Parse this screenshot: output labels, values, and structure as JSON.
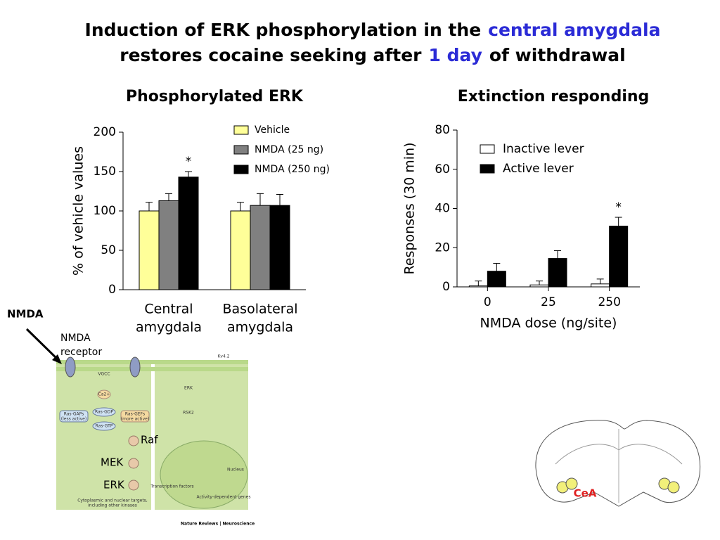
{
  "slide": {
    "title_lines": [
      [
        "Induction of ERK phosphorylation in the",
        "central amygdala"
      ],
      [
        "restores cocaine seeking after",
        "1 day",
        "of withdrawal"
      ]
    ],
    "highlight_color": "#2b2bd6"
  },
  "chart_data": [
    {
      "type": "bar",
      "title": "Phosphorylated ERK",
      "ylabel": "% of vehicle values",
      "categories": [
        [
          "Central",
          "amygdala"
        ],
        [
          "Basolateral",
          "amygdala"
        ]
      ],
      "series": [
        {
          "name": "Vehicle",
          "color": "#ffff99",
          "values": [
            100,
            100
          ],
          "errors": [
            11,
            11
          ]
        },
        {
          "name": "NMDA (25 ng)",
          "color": "#808080",
          "values": [
            113,
            107
          ],
          "errors": [
            9,
            15
          ]
        },
        {
          "name": "NMDA (250 ng)",
          "color": "#000000",
          "values": [
            143,
            107
          ],
          "errors": [
            7,
            14
          ]
        }
      ],
      "annotations": [
        {
          "text": "*",
          "series": 2,
          "category": 0
        }
      ],
      "ylim": [
        0,
        200
      ],
      "yticks": [
        0,
        50,
        100,
        150,
        200
      ]
    },
    {
      "type": "bar",
      "title": "Extinction responding",
      "ylabel": "Responses (30 min)",
      "xlabel": "NMDA dose (ng/site)",
      "categories": [
        "0",
        "25",
        "250"
      ],
      "series": [
        {
          "name": "Inactive lever",
          "color": "#ffffff",
          "values": [
            0.5,
            1,
            1.5
          ],
          "errors": [
            2.5,
            2,
            2.5
          ]
        },
        {
          "name": "Active lever",
          "color": "#000000",
          "values": [
            8,
            14.5,
            31
          ],
          "errors": [
            4,
            4,
            4.5
          ]
        }
      ],
      "annotations": [
        {
          "text": "*",
          "series": 1,
          "category": 2
        }
      ],
      "ylim": [
        0,
        80
      ],
      "yticks": [
        0,
        20,
        40,
        60,
        80
      ]
    }
  ],
  "diagram": {
    "pointers": [
      "NMDA",
      "NMDA",
      "receptor",
      "Raf",
      "MEK",
      "ERK"
    ],
    "figure_labels": [
      "VGCC",
      "Ca2+",
      "Ras-GDP",
      "Ras-GTP",
      "Ras-GAPs",
      "(less active)",
      "Ras-GEFs",
      "(more active)",
      "ERK",
      "RSK2",
      "Nucleus",
      "Transcription factors",
      "Activity-dependent genes",
      "Cytoplasmic and nuclear targets,",
      "including other kinases",
      "Kv4.2"
    ],
    "credit": "Nature Reviews | Neuroscience"
  },
  "brain": {
    "region": "CeA"
  }
}
